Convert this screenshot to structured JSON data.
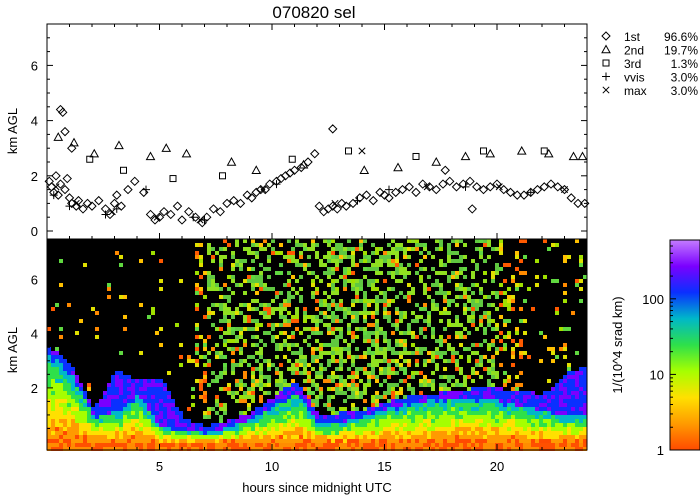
{
  "chart_data": [
    {
      "type": "scatter",
      "title": "070820 sel",
      "ylabel": "km AGL",
      "xlim": [
        0,
        24
      ],
      "ylim": [
        0,
        7.5
      ],
      "yticks": [
        0,
        2,
        4,
        6
      ],
      "legend_position": "right",
      "series": [
        {
          "name": "1st",
          "pct": "96.6%",
          "marker": "diamond",
          "points": [
            [
              0.1,
              1.8
            ],
            [
              0.2,
              1.6
            ],
            [
              0.3,
              1.4
            ],
            [
              0.4,
              2.0
            ],
            [
              0.5,
              1.3
            ],
            [
              0.6,
              1.7
            ],
            [
              0.8,
              1.5
            ],
            [
              0.9,
              1.9
            ],
            [
              1.0,
              1.2
            ],
            [
              1.1,
              1.0
            ],
            [
              1.3,
              0.9
            ],
            [
              1.4,
              1.1
            ],
            [
              1.6,
              0.8
            ],
            [
              1.8,
              1.0
            ],
            [
              2.0,
              0.9
            ],
            [
              2.3,
              1.1
            ],
            [
              2.6,
              0.8
            ],
            [
              2.8,
              0.6
            ],
            [
              3.0,
              1.0
            ],
            [
              3.1,
              1.3
            ],
            [
              3.3,
              0.9
            ],
            [
              3.6,
              1.5
            ],
            [
              3.9,
              1.8
            ],
            [
              4.3,
              1.4
            ],
            [
              4.6,
              0.6
            ],
            [
              4.8,
              0.4
            ],
            [
              5.0,
              0.5
            ],
            [
              5.2,
              0.7
            ],
            [
              5.5,
              0.6
            ],
            [
              5.8,
              0.9
            ],
            [
              6.0,
              0.4
            ],
            [
              6.3,
              0.7
            ],
            [
              6.6,
              0.5
            ],
            [
              6.9,
              0.3
            ],
            [
              7.1,
              0.5
            ],
            [
              7.4,
              0.8
            ],
            [
              7.7,
              0.7
            ],
            [
              8.0,
              1.0
            ],
            [
              8.3,
              1.1
            ],
            [
              8.6,
              1.0
            ],
            [
              8.9,
              1.3
            ],
            [
              9.1,
              1.2
            ],
            [
              9.3,
              1.4
            ],
            [
              9.5,
              1.5
            ],
            [
              9.7,
              1.5
            ],
            [
              9.9,
              1.7
            ],
            [
              10.2,
              1.8
            ],
            [
              10.4,
              1.9
            ],
            [
              10.6,
              2.0
            ],
            [
              10.8,
              2.1
            ],
            [
              11.0,
              2.2
            ],
            [
              11.3,
              2.3
            ],
            [
              11.6,
              2.5
            ],
            [
              11.9,
              2.8
            ],
            [
              12.1,
              0.9
            ],
            [
              12.3,
              0.7
            ],
            [
              12.5,
              0.8
            ],
            [
              12.7,
              0.9
            ],
            [
              12.9,
              0.8
            ],
            [
              13.1,
              1.0
            ],
            [
              13.3,
              0.9
            ],
            [
              13.6,
              1.0
            ],
            [
              13.9,
              1.2
            ],
            [
              14.2,
              1.3
            ],
            [
              14.5,
              1.1
            ],
            [
              14.8,
              1.4
            ],
            [
              15.0,
              1.3
            ],
            [
              15.2,
              1.2
            ],
            [
              15.5,
              1.4
            ],
            [
              15.8,
              1.5
            ],
            [
              16.1,
              1.6
            ],
            [
              16.4,
              1.4
            ],
            [
              16.7,
              1.7
            ],
            [
              17.0,
              1.6
            ],
            [
              17.3,
              1.5
            ],
            [
              17.6,
              1.7
            ],
            [
              17.9,
              1.8
            ],
            [
              18.2,
              1.6
            ],
            [
              18.5,
              1.7
            ],
            [
              18.8,
              1.8
            ],
            [
              19.1,
              1.6
            ],
            [
              19.4,
              1.5
            ],
            [
              19.7,
              1.6
            ],
            [
              20.0,
              1.7
            ],
            [
              20.3,
              1.5
            ],
            [
              20.6,
              1.4
            ],
            [
              20.9,
              1.3
            ],
            [
              21.2,
              1.3
            ],
            [
              21.5,
              1.4
            ],
            [
              21.8,
              1.5
            ],
            [
              22.1,
              1.6
            ],
            [
              22.4,
              1.7
            ],
            [
              22.7,
              1.6
            ],
            [
              23.0,
              1.5
            ],
            [
              23.3,
              1.2
            ],
            [
              23.6,
              1.0
            ],
            [
              23.9,
              1.0
            ],
            [
              0.6,
              4.4
            ],
            [
              0.7,
              4.3
            ],
            [
              0.8,
              3.6
            ],
            [
              1.1,
              3.0
            ],
            [
              12.7,
              3.7
            ],
            [
              17.7,
              2.2
            ],
            [
              18.9,
              0.8
            ]
          ]
        },
        {
          "name": "2nd",
          "pct": "19.7%",
          "marker": "triangle",
          "points": [
            [
              0.5,
              3.4
            ],
            [
              1.2,
              3.2
            ],
            [
              2.1,
              2.8
            ],
            [
              3.2,
              3.1
            ],
            [
              4.6,
              2.7
            ],
            [
              5.3,
              3.0
            ],
            [
              6.2,
              2.8
            ],
            [
              8.2,
              2.5
            ],
            [
              9.3,
              2.2
            ],
            [
              11.4,
              2.4
            ],
            [
              14.1,
              2.2
            ],
            [
              15.6,
              2.3
            ],
            [
              17.3,
              2.5
            ],
            [
              18.6,
              2.7
            ],
            [
              19.7,
              2.8
            ],
            [
              21.1,
              2.9
            ],
            [
              22.3,
              2.8
            ],
            [
              23.4,
              2.7
            ],
            [
              23.8,
              2.7
            ]
          ]
        },
        {
          "name": "3rd",
          "pct": "1.3%",
          "marker": "square",
          "points": [
            [
              1.9,
              2.6
            ],
            [
              3.4,
              2.2
            ],
            [
              5.6,
              1.9
            ],
            [
              7.8,
              2.0
            ],
            [
              10.9,
              2.6
            ],
            [
              13.4,
              2.9
            ],
            [
              16.4,
              2.7
            ],
            [
              19.4,
              2.9
            ],
            [
              22.1,
              2.9
            ]
          ]
        },
        {
          "name": "vvis",
          "pct": "3.0%",
          "marker": "plus",
          "points": [
            [
              0.3,
              1.3
            ],
            [
              1.0,
              0.9
            ],
            [
              2.6,
              0.6
            ],
            [
              3.1,
              0.8
            ],
            [
              4.4,
              1.5
            ],
            [
              6.5,
              0.5
            ],
            [
              7.0,
              0.4
            ],
            [
              10.2,
              1.7
            ],
            [
              13.8,
              1.1
            ],
            [
              15.2,
              1.5
            ],
            [
              18.6,
              1.6
            ],
            [
              21.5,
              1.4
            ]
          ]
        },
        {
          "name": "max",
          "pct": "3.0%",
          "marker": "x",
          "points": [
            [
              0.4,
              1.6
            ],
            [
              1.3,
              1.0
            ],
            [
              2.9,
              0.7
            ],
            [
              4.9,
              0.5
            ],
            [
              6.8,
              0.4
            ],
            [
              9.6,
              1.5
            ],
            [
              12.8,
              1.0
            ],
            [
              14.0,
              2.9
            ],
            [
              16.9,
              1.6
            ],
            [
              20.1,
              1.6
            ],
            [
              23.0,
              1.5
            ]
          ]
        }
      ]
    },
    {
      "type": "heatmap",
      "xlabel": "hours since midnight UTC",
      "ylabel": "km AGL",
      "xlim": [
        0,
        24
      ],
      "ylim": [
        0,
        7.5
      ],
      "xticks": [
        5,
        10,
        15,
        20
      ],
      "yticks": [
        2,
        4,
        6
      ],
      "colorbar": {
        "label": "1/(10^4 srad km)",
        "scale": "log",
        "range": [
          1,
          600
        ],
        "ticks": [
          1,
          10,
          100
        ],
        "tick_labels": [
          "1",
          "10",
          "100"
        ],
        "colors": [
          "#ff4a00",
          "#ff9a00",
          "#ffe000",
          "#a6ff00",
          "#2ee04a",
          "#00b8c8",
          "#0a30ff",
          "#7a00ff",
          "#c37cff"
        ]
      },
      "profile": {
        "x": [
          0,
          0.5,
          1,
          2,
          3,
          4,
          5,
          6,
          7,
          8,
          9,
          10,
          11,
          12,
          13,
          14,
          15,
          16,
          17,
          18,
          19,
          20,
          21,
          22,
          23,
          24
        ],
        "aerosol_top_km": [
          3.3,
          3.0,
          2.6,
          1.0,
          1.2,
          1.8,
          0.6,
          0.5,
          0.4,
          0.6,
          0.9,
          1.4,
          1.9,
          0.7,
          0.8,
          1.0,
          1.3,
          1.5,
          1.6,
          1.7,
          1.7,
          1.6,
          1.4,
          1.2,
          1.0,
          1.1
        ],
        "cloud_top_km": [
          3.4,
          3.2,
          2.8,
          1.1,
          2.6,
          2.2,
          2.3,
          0.8,
          0.5,
          0.7,
          1.0,
          1.6,
          2.2,
          0.9,
          1.0,
          1.1,
          1.4,
          1.6,
          1.7,
          1.8,
          1.9,
          1.9,
          1.8,
          1.7,
          2.5,
          2.7
        ]
      }
    }
  ]
}
